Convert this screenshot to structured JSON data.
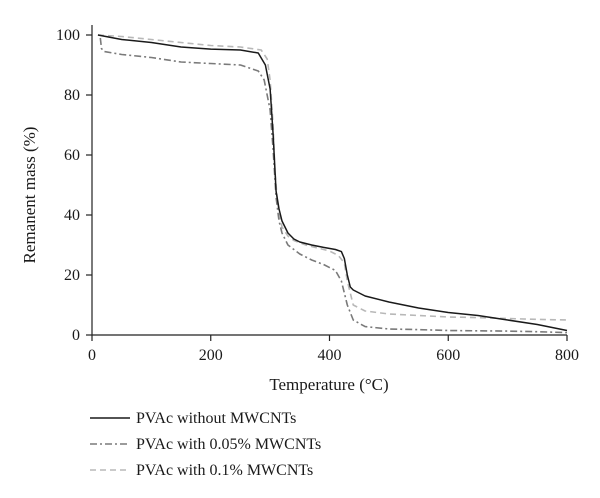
{
  "chart_data": {
    "type": "line",
    "title": "",
    "xlabel": "Temperature (°C)",
    "ylabel": "Remanent mass (%)",
    "xlim": [
      0,
      800
    ],
    "ylim": [
      0,
      100
    ],
    "xticks": [
      "0",
      "200",
      "400",
      "600",
      "800"
    ],
    "yticks": [
      "0",
      "20",
      "40",
      "60",
      "80",
      "100"
    ],
    "legend_position": "bottom-left, below plot",
    "grid": false,
    "series": [
      {
        "name": "PVAc without MWCNTs",
        "color": "#1a1a1a",
        "dash": "solid",
        "x": [
          10,
          50,
          100,
          150,
          200,
          250,
          280,
          292,
          300,
          305,
          310,
          315,
          320,
          330,
          340,
          350,
          370,
          390,
          410,
          420,
          425,
          430,
          435,
          440,
          460,
          500,
          550,
          600,
          650,
          700,
          750,
          800
        ],
        "y": [
          100,
          98.5,
          97.5,
          96,
          95.3,
          95,
          94,
          90,
          82,
          67,
          48,
          42,
          38,
          34,
          32,
          31,
          30,
          29.2,
          28.5,
          27.8,
          25.5,
          20,
          16,
          15,
          13,
          11,
          9,
          7.5,
          6.5,
          5,
          3.5,
          1.5
        ]
      },
      {
        "name": "PVAc with 0.05% MWCNTs",
        "color": "#7a7a7a",
        "dash": "dashdot",
        "x": [
          14,
          16,
          20,
          50,
          100,
          150,
          200,
          250,
          280,
          290,
          300,
          305,
          310,
          315,
          320,
          330,
          350,
          370,
          390,
          410,
          420,
          430,
          440,
          460,
          500,
          550,
          600,
          650,
          700,
          750,
          800
        ],
        "y": [
          99,
          95.5,
          94.5,
          93.5,
          92.5,
          91,
          90.5,
          90,
          88,
          85,
          75,
          62,
          46,
          38,
          34,
          30,
          27,
          25,
          23.5,
          21.5,
          18,
          10,
          5,
          2.8,
          2,
          1.8,
          1.5,
          1.4,
          1.3,
          1.1,
          0.8
        ]
      },
      {
        "name": "PVAc with 0.1% MWCNTs",
        "color": "#b8b8b8",
        "dash": "dashed",
        "x": [
          10,
          50,
          100,
          150,
          200,
          250,
          285,
          295,
          300,
          305,
          308,
          312,
          316,
          320,
          330,
          340,
          360,
          380,
          400,
          415,
          425,
          430,
          440,
          460,
          500,
          550,
          600,
          650,
          700,
          750,
          800
        ],
        "y": [
          100,
          99.5,
          98.5,
          97.5,
          96.5,
          96,
          95,
          92,
          85,
          70,
          55,
          45,
          40,
          36,
          33,
          31.5,
          30,
          29,
          28,
          26.5,
          24,
          18,
          10,
          8,
          7,
          6.5,
          6,
          5.8,
          5.5,
          5.2,
          5
        ]
      }
    ]
  }
}
